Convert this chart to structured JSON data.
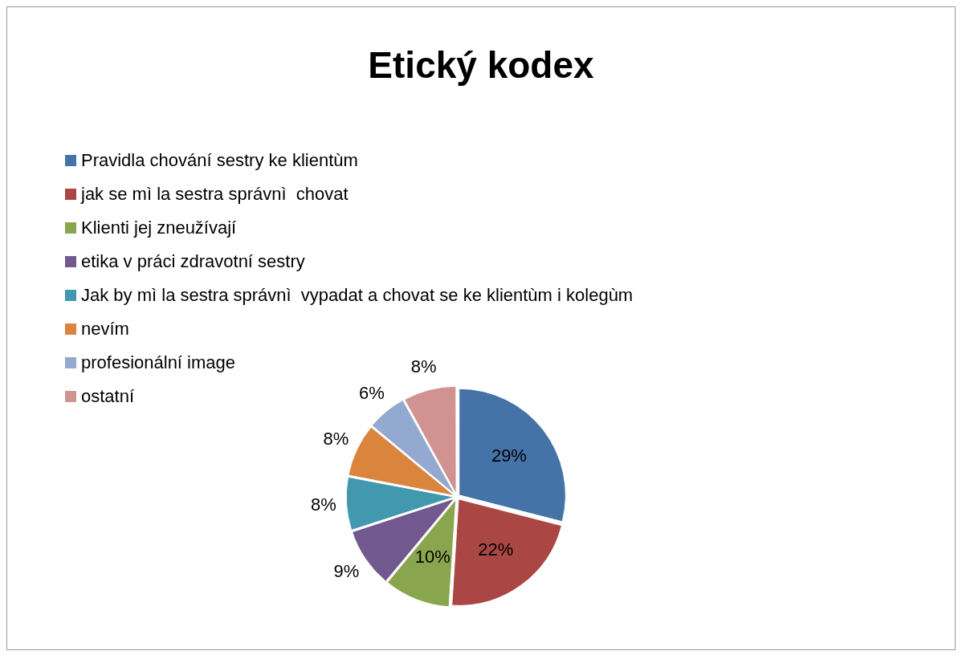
{
  "chart_data": {
    "type": "pie",
    "title": "Etický kodex",
    "categories": [
      "Pravidla chování sestry ke klientùm",
      "jak se mì la sestra správnì  chovat",
      "Klienti jej zneužívají",
      "etika v práci zdravotní sestry",
      "Jak by mì la sestra správnì  vypadat a chovat se ke klientùm i kolegùm",
      "nevím",
      "profesionální image",
      "ostatní"
    ],
    "values": [
      29,
      22,
      10,
      9,
      8,
      8,
      6,
      8
    ],
    "value_labels": [
      "29%",
      "22%",
      "10%",
      "9%",
      "8%",
      "8%",
      "6%",
      "8%"
    ],
    "colors": [
      "#4572a7",
      "#aa4643",
      "#89a54e",
      "#71588f",
      "#4198af",
      "#db843d",
      "#93a9cf",
      "#d19392"
    ],
    "legend": "top left"
  }
}
